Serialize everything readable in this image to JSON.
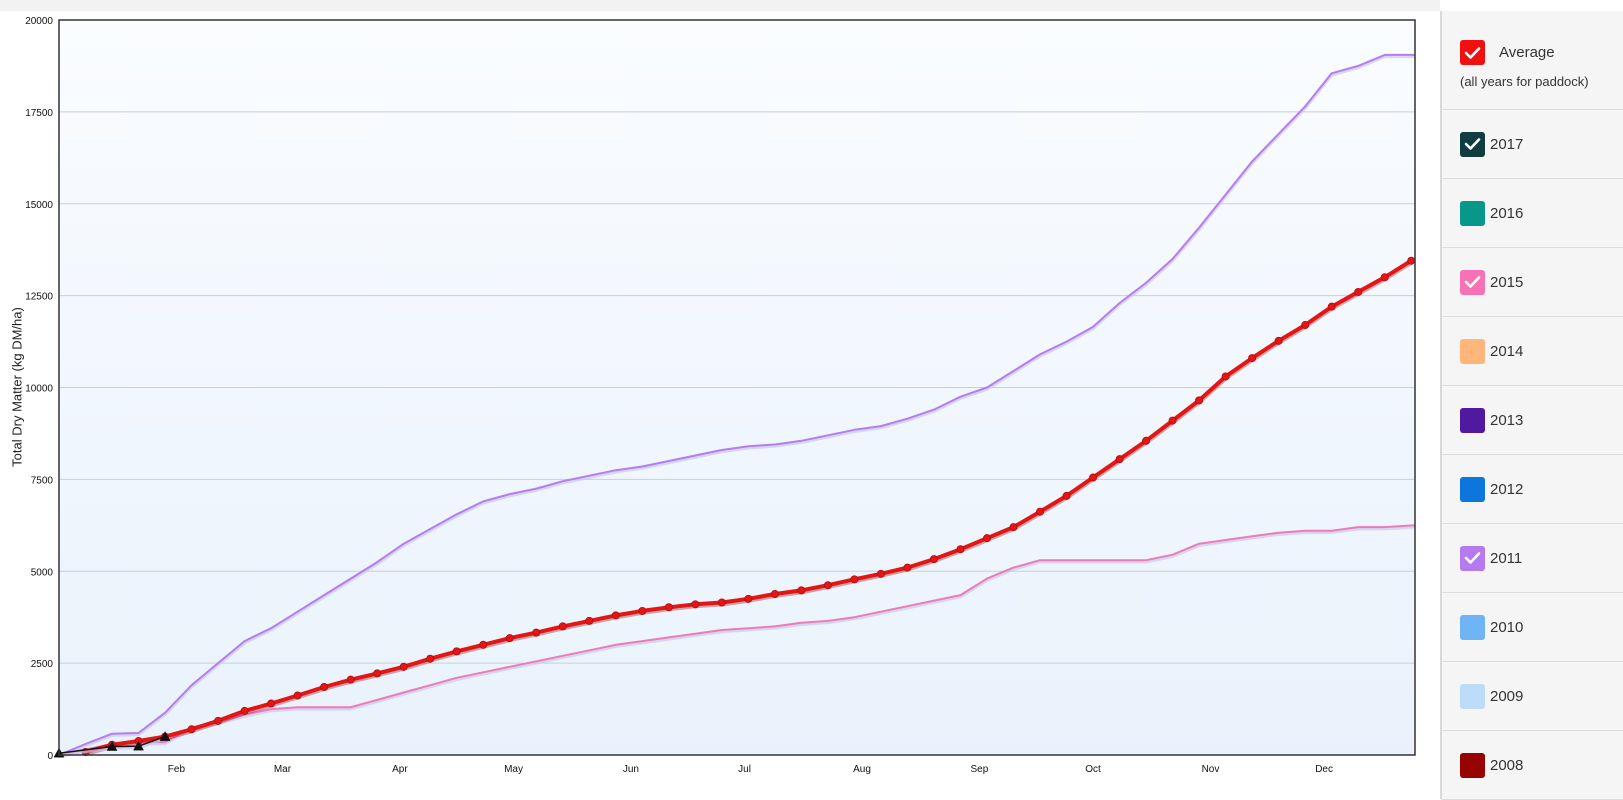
{
  "chart_data": {
    "type": "line",
    "xlabel": "",
    "ylabel": "Total Dry Matter (kg DM/ha)",
    "ylim": [
      0,
      20000
    ],
    "yticks": [
      0,
      2500,
      5000,
      7500,
      10000,
      12500,
      15000,
      17500,
      20000
    ],
    "xlim": [
      0,
      358
    ],
    "month_ticks": [
      {
        "label": "Feb",
        "x": 31
      },
      {
        "label": "Mar",
        "x": 59
      },
      {
        "label": "Apr",
        "x": 90
      },
      {
        "label": "May",
        "x": 120
      },
      {
        "label": "Jun",
        "x": 151
      },
      {
        "label": "Jul",
        "x": 181
      },
      {
        "label": "Aug",
        "x": 212
      },
      {
        "label": "Sep",
        "x": 243
      },
      {
        "label": "Oct",
        "x": 273
      },
      {
        "label": "Nov",
        "x": 304
      },
      {
        "label": "Dec",
        "x": 334
      }
    ],
    "series": [
      {
        "name": "2011",
        "color": "#b77cf0",
        "points": [
          [
            0,
            0
          ],
          [
            7,
            300
          ],
          [
            14,
            580
          ],
          [
            21,
            600
          ],
          [
            28,
            1150
          ],
          [
            35,
            1900
          ],
          [
            42,
            2500
          ],
          [
            49,
            3100
          ],
          [
            56,
            3450
          ],
          [
            63,
            3900
          ],
          [
            70,
            4350
          ],
          [
            77,
            4800
          ],
          [
            84,
            5250
          ],
          [
            91,
            5750
          ],
          [
            98,
            6150
          ],
          [
            105,
            6550
          ],
          [
            112,
            6900
          ],
          [
            119,
            7100
          ],
          [
            126,
            7250
          ],
          [
            133,
            7450
          ],
          [
            140,
            7600
          ],
          [
            147,
            7750
          ],
          [
            154,
            7850
          ],
          [
            161,
            8000
          ],
          [
            168,
            8150
          ],
          [
            175,
            8300
          ],
          [
            182,
            8400
          ],
          [
            189,
            8450
          ],
          [
            196,
            8550
          ],
          [
            203,
            8700
          ],
          [
            210,
            8850
          ],
          [
            217,
            8950
          ],
          [
            224,
            9150
          ],
          [
            231,
            9400
          ],
          [
            238,
            9750
          ],
          [
            245,
            10000
          ],
          [
            252,
            10450
          ],
          [
            259,
            10900
          ],
          [
            266,
            11250
          ],
          [
            273,
            11650
          ],
          [
            280,
            12300
          ],
          [
            287,
            12850
          ],
          [
            294,
            13500
          ],
          [
            301,
            14350
          ],
          [
            308,
            15250
          ],
          [
            315,
            16150
          ],
          [
            322,
            16900
          ],
          [
            329,
            17650
          ],
          [
            336,
            18550
          ],
          [
            343,
            18750
          ],
          [
            350,
            19050
          ],
          [
            358,
            19050
          ]
        ]
      },
      {
        "name": "2015",
        "color": "#f07ab6",
        "points": [
          [
            0,
            0
          ],
          [
            7,
            150
          ],
          [
            14,
            300
          ],
          [
            21,
            350
          ],
          [
            28,
            350
          ],
          [
            35,
            750
          ],
          [
            42,
            900
          ],
          [
            49,
            1100
          ],
          [
            56,
            1250
          ],
          [
            63,
            1300
          ],
          [
            70,
            1300
          ],
          [
            77,
            1300
          ],
          [
            84,
            1500
          ],
          [
            91,
            1700
          ],
          [
            98,
            1900
          ],
          [
            105,
            2100
          ],
          [
            112,
            2250
          ],
          [
            119,
            2400
          ],
          [
            126,
            2550
          ],
          [
            133,
            2700
          ],
          [
            140,
            2850
          ],
          [
            147,
            3000
          ],
          [
            154,
            3100
          ],
          [
            161,
            3200
          ],
          [
            168,
            3300
          ],
          [
            175,
            3400
          ],
          [
            182,
            3450
          ],
          [
            189,
            3500
          ],
          [
            196,
            3600
          ],
          [
            203,
            3650
          ],
          [
            210,
            3750
          ],
          [
            217,
            3900
          ],
          [
            224,
            4050
          ],
          [
            231,
            4200
          ],
          [
            238,
            4350
          ],
          [
            245,
            4800
          ],
          [
            252,
            5100
          ],
          [
            259,
            5300
          ],
          [
            266,
            5300
          ],
          [
            273,
            5300
          ],
          [
            280,
            5300
          ],
          [
            287,
            5300
          ],
          [
            294,
            5450
          ],
          [
            301,
            5750
          ],
          [
            308,
            5850
          ],
          [
            315,
            5950
          ],
          [
            322,
            6050
          ],
          [
            329,
            6100
          ],
          [
            336,
            6100
          ],
          [
            343,
            6200
          ],
          [
            350,
            6200
          ],
          [
            358,
            6250
          ]
        ]
      },
      {
        "name": "Average",
        "color": "#e31515",
        "markers": true,
        "points": [
          [
            7,
            80
          ],
          [
            14,
            280
          ],
          [
            21,
            380
          ],
          [
            28,
            500
          ],
          [
            35,
            700
          ],
          [
            42,
            930
          ],
          [
            49,
            1200
          ],
          [
            56,
            1400
          ],
          [
            63,
            1620
          ],
          [
            70,
            1850
          ],
          [
            77,
            2050
          ],
          [
            84,
            2220
          ],
          [
            91,
            2400
          ],
          [
            98,
            2620
          ],
          [
            105,
            2820
          ],
          [
            112,
            3000
          ],
          [
            119,
            3180
          ],
          [
            126,
            3330
          ],
          [
            133,
            3500
          ],
          [
            140,
            3650
          ],
          [
            147,
            3800
          ],
          [
            154,
            3920
          ],
          [
            161,
            4020
          ],
          [
            168,
            4100
          ],
          [
            175,
            4150
          ],
          [
            182,
            4250
          ],
          [
            189,
            4380
          ],
          [
            196,
            4480
          ],
          [
            203,
            4620
          ],
          [
            210,
            4780
          ],
          [
            217,
            4930
          ],
          [
            224,
            5100
          ],
          [
            231,
            5330
          ],
          [
            238,
            5600
          ],
          [
            245,
            5900
          ],
          [
            252,
            6200
          ],
          [
            259,
            6620
          ],
          [
            266,
            7050
          ],
          [
            273,
            7550
          ],
          [
            280,
            8050
          ],
          [
            287,
            8550
          ],
          [
            294,
            9100
          ],
          [
            301,
            9650
          ],
          [
            308,
            10300
          ],
          [
            315,
            10800
          ],
          [
            322,
            11270
          ],
          [
            329,
            11700
          ],
          [
            336,
            12200
          ],
          [
            343,
            12600
          ],
          [
            350,
            13000
          ],
          [
            357,
            13450
          ]
        ]
      },
      {
        "name": "2017",
        "color": "#111111",
        "triangle_markers": true,
        "points": [
          [
            0,
            50
          ],
          [
            14,
            230
          ],
          [
            21,
            240
          ],
          [
            28,
            500
          ]
        ]
      }
    ]
  },
  "legend": {
    "average_label": "Average",
    "average_sub": "(all years for paddock)",
    "average_color": "#f01010",
    "items": [
      {
        "label": "2017",
        "color": "#0f3d40",
        "checked": true
      },
      {
        "label": "2016",
        "color": "#089889",
        "checked": false
      },
      {
        "label": "2015",
        "color": "#f573b5",
        "checked": true
      },
      {
        "label": "2014",
        "color": "#ffb67a",
        "checked": false
      },
      {
        "label": "2013",
        "color": "#4f1aa0",
        "checked": false
      },
      {
        "label": "2012",
        "color": "#0d76dc",
        "checked": false
      },
      {
        "label": "2011",
        "color": "#b57af0",
        "checked": true
      },
      {
        "label": "2010",
        "color": "#6fb5f5",
        "checked": false
      },
      {
        "label": "2009",
        "color": "#bcdcf8",
        "checked": false
      },
      {
        "label": "2008",
        "color": "#970303",
        "checked": false
      }
    ]
  }
}
